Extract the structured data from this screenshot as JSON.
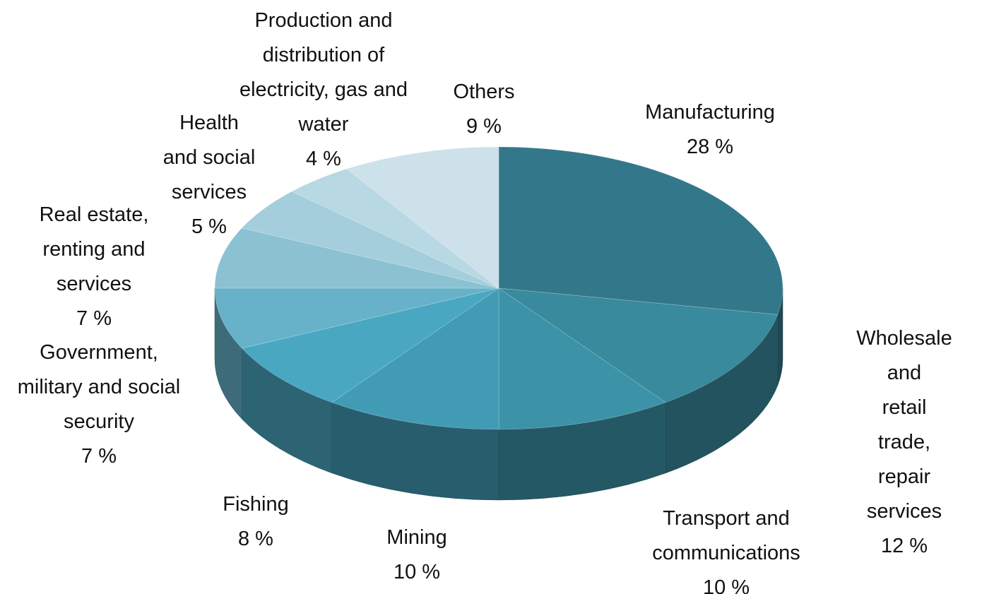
{
  "chart_data": {
    "type": "pie3d",
    "categories": [
      "Manufacturing",
      "Wholesale and\nretail trade, repair\nservices",
      "Transport and\ncommunications",
      "Mining",
      "Fishing",
      "Government,\nmilitary and social\nsecurity",
      "Real estate,\nrenting and\nservices",
      "Health\nand social\nservices",
      "Production and\ndistribution of\nelectricity, gas and\nwater",
      "Others"
    ],
    "values": [
      28,
      12,
      10,
      10,
      8,
      7,
      7,
      5,
      4,
      9
    ],
    "value_labels": [
      "28 %",
      "12 %",
      "10 %",
      "10 %",
      "8 %",
      "7 %",
      "7 %",
      "5 %",
      "4 %",
      "9 %"
    ],
    "colors": [
      "#33788a",
      "#388a9c",
      "#3c93a8",
      "#429bb5",
      "#49a7c2",
      "#67b2c9",
      "#8cc1d2",
      "#a4cedc",
      "#b8d8e3",
      "#cde1ea"
    ]
  }
}
